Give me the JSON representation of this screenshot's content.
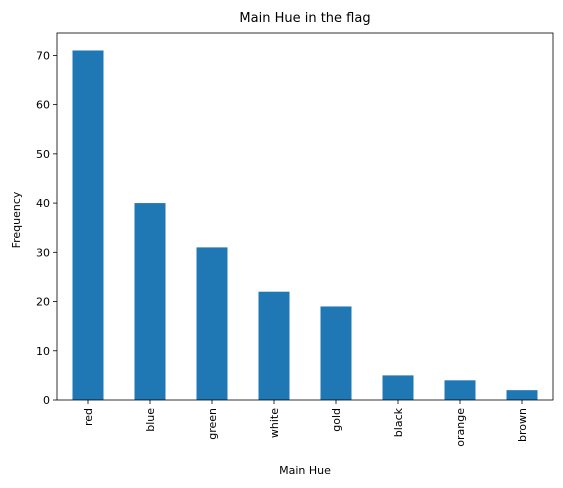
{
  "chart_data": {
    "type": "bar",
    "title": "Main Hue in the flag",
    "xlabel": "Main Hue",
    "ylabel": "Frequency",
    "categories": [
      "red",
      "blue",
      "green",
      "white",
      "gold",
      "black",
      "orange",
      "brown"
    ],
    "values": [
      71,
      40,
      31,
      22,
      19,
      5,
      4,
      2
    ],
    "ylim": [
      0,
      74.55
    ],
    "yticks": [
      0,
      10,
      20,
      30,
      40,
      50,
      60,
      70
    ],
    "grid": false,
    "bar_color": "#1f77b4"
  }
}
